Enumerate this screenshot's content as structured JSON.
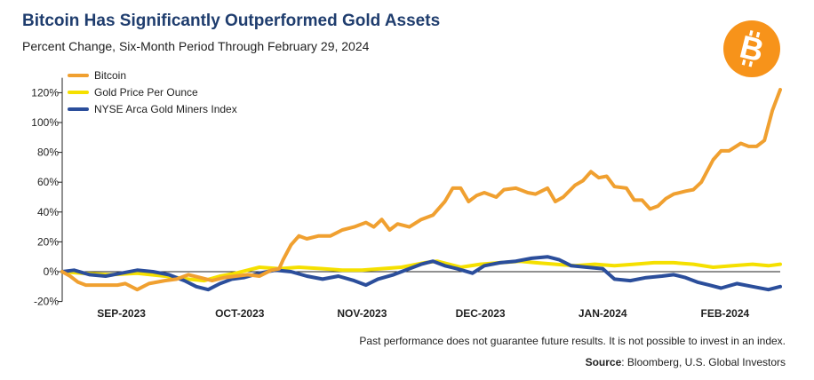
{
  "header": {
    "title": "Bitcoin Has Significantly Outperformed Gold Assets",
    "subtitle": "Percent Change, Six-Month Period Through February 29, 2024"
  },
  "logo": {
    "icon": "bitcoin-logo-icon",
    "glyph": "B",
    "color": "#f7931a"
  },
  "footer": {
    "disclaimer": "Past performance does not guarantee future results. It is not possible to invest in an index.",
    "source_label": "Source",
    "source_text": ": Bloomberg, U.S. Global Investors"
  },
  "chart_data": {
    "type": "line",
    "title": "Bitcoin Has Significantly Outperformed Gold Assets",
    "subtitle": "Percent Change, Six-Month Period Through February 29, 2024",
    "xlabel": "",
    "ylabel": "",
    "ylim": [
      -20,
      130
    ],
    "xlim": [
      "2023-08-31",
      "2024-02-29"
    ],
    "yticks": [
      -20,
      0,
      20,
      40,
      60,
      80,
      100,
      120
    ],
    "ytick_labels": [
      "-20%",
      "0%",
      "20%",
      "40%",
      "60%",
      "80%",
      "100%",
      "120%"
    ],
    "xticks": [
      {
        "date": "2023-09-15",
        "label": "SEP-2023"
      },
      {
        "date": "2023-10-15",
        "label": "OCT-2023"
      },
      {
        "date": "2023-11-15",
        "label": "NOV-2023"
      },
      {
        "date": "2023-12-15",
        "label": "DEC-2023"
      },
      {
        "date": "2024-01-15",
        "label": "JAN-2024"
      },
      {
        "date": "2024-02-15",
        "label": "FEB-2024"
      }
    ],
    "grid": false,
    "zero_line": true,
    "legend_position": "top-left",
    "series": [
      {
        "name": "Bitcoin",
        "color": "#f0a030",
        "points": [
          [
            "2023-08-31",
            0
          ],
          [
            "2023-09-02",
            -3
          ],
          [
            "2023-09-04",
            -7
          ],
          [
            "2023-09-06",
            -9
          ],
          [
            "2023-09-10",
            -9
          ],
          [
            "2023-09-14",
            -9
          ],
          [
            "2023-09-16",
            -8
          ],
          [
            "2023-09-19",
            -12
          ],
          [
            "2023-09-22",
            -8
          ],
          [
            "2023-09-26",
            -6
          ],
          [
            "2023-09-29",
            -5
          ],
          [
            "2023-10-02",
            -2
          ],
          [
            "2023-10-05",
            -4
          ],
          [
            "2023-10-08",
            -6
          ],
          [
            "2023-10-11",
            -4
          ],
          [
            "2023-10-14",
            -3
          ],
          [
            "2023-10-17",
            -2
          ],
          [
            "2023-10-20",
            -3
          ],
          [
            "2023-10-23",
            1
          ],
          [
            "2023-10-25",
            2
          ],
          [
            "2023-10-26",
            8
          ],
          [
            "2023-10-28",
            18
          ],
          [
            "2023-10-30",
            24
          ],
          [
            "2023-11-01",
            22
          ],
          [
            "2023-11-04",
            24
          ],
          [
            "2023-11-07",
            24
          ],
          [
            "2023-11-10",
            28
          ],
          [
            "2023-11-13",
            30
          ],
          [
            "2023-11-16",
            33
          ],
          [
            "2023-11-18",
            30
          ],
          [
            "2023-11-20",
            35
          ],
          [
            "2023-11-22",
            28
          ],
          [
            "2023-11-24",
            32
          ],
          [
            "2023-11-27",
            30
          ],
          [
            "2023-11-30",
            35
          ],
          [
            "2023-12-03",
            38
          ],
          [
            "2023-12-06",
            47
          ],
          [
            "2023-12-08",
            56
          ],
          [
            "2023-12-10",
            56
          ],
          [
            "2023-12-12",
            47
          ],
          [
            "2023-12-14",
            51
          ],
          [
            "2023-12-16",
            53
          ],
          [
            "2023-12-19",
            50
          ],
          [
            "2023-12-21",
            55
          ],
          [
            "2023-12-24",
            56
          ],
          [
            "2023-12-27",
            53
          ],
          [
            "2023-12-29",
            52
          ],
          [
            "2024-01-01",
            56
          ],
          [
            "2024-01-03",
            47
          ],
          [
            "2024-01-05",
            50
          ],
          [
            "2024-01-08",
            58
          ],
          [
            "2024-01-10",
            61
          ],
          [
            "2024-01-12",
            67
          ],
          [
            "2024-01-14",
            63
          ],
          [
            "2024-01-16",
            64
          ],
          [
            "2024-01-18",
            57
          ],
          [
            "2024-01-21",
            56
          ],
          [
            "2024-01-23",
            48
          ],
          [
            "2024-01-25",
            48
          ],
          [
            "2024-01-27",
            42
          ],
          [
            "2024-01-29",
            44
          ],
          [
            "2024-01-31",
            49
          ],
          [
            "2024-02-02",
            52
          ],
          [
            "2024-02-05",
            54
          ],
          [
            "2024-02-07",
            55
          ],
          [
            "2024-02-09",
            60
          ],
          [
            "2024-02-12",
            75
          ],
          [
            "2024-02-14",
            81
          ],
          [
            "2024-02-16",
            81
          ],
          [
            "2024-02-19",
            86
          ],
          [
            "2024-02-21",
            84
          ],
          [
            "2024-02-23",
            84
          ],
          [
            "2024-02-25",
            88
          ],
          [
            "2024-02-27",
            108
          ],
          [
            "2024-02-29",
            122
          ]
        ]
      },
      {
        "name": "Gold Price Per Ounce",
        "color": "#f5e000",
        "points": [
          [
            "2023-08-31",
            0
          ],
          [
            "2023-09-05",
            -1
          ],
          [
            "2023-09-12",
            -2
          ],
          [
            "2023-09-19",
            -1
          ],
          [
            "2023-09-26",
            -3
          ],
          [
            "2023-10-02",
            -5
          ],
          [
            "2023-10-06",
            -6
          ],
          [
            "2023-10-10",
            -3
          ],
          [
            "2023-10-14",
            -1
          ],
          [
            "2023-10-17",
            1
          ],
          [
            "2023-10-20",
            3
          ],
          [
            "2023-10-25",
            2
          ],
          [
            "2023-10-30",
            3
          ],
          [
            "2023-11-05",
            2
          ],
          [
            "2023-11-10",
            1
          ],
          [
            "2023-11-15",
            1
          ],
          [
            "2023-11-20",
            2
          ],
          [
            "2023-11-25",
            3
          ],
          [
            "2023-12-01",
            6
          ],
          [
            "2023-12-04",
            7
          ],
          [
            "2023-12-07",
            5
          ],
          [
            "2023-12-10",
            3
          ],
          [
            "2023-12-15",
            5
          ],
          [
            "2023-12-20",
            6
          ],
          [
            "2023-12-25",
            7
          ],
          [
            "2023-12-29",
            6
          ],
          [
            "2024-01-03",
            5
          ],
          [
            "2024-01-08",
            4
          ],
          [
            "2024-01-13",
            5
          ],
          [
            "2024-01-18",
            4
          ],
          [
            "2024-01-23",
            5
          ],
          [
            "2024-01-28",
            6
          ],
          [
            "2024-02-02",
            6
          ],
          [
            "2024-02-07",
            5
          ],
          [
            "2024-02-12",
            3
          ],
          [
            "2024-02-17",
            4
          ],
          [
            "2024-02-22",
            5
          ],
          [
            "2024-02-26",
            4
          ],
          [
            "2024-02-29",
            5
          ]
        ]
      },
      {
        "name": "NYSE Arca Gold Miners Index",
        "color": "#2b4e9b",
        "points": [
          [
            "2023-08-31",
            0
          ],
          [
            "2023-09-03",
            1
          ],
          [
            "2023-09-07",
            -2
          ],
          [
            "2023-09-11",
            -3
          ],
          [
            "2023-09-15",
            -1
          ],
          [
            "2023-09-19",
            1
          ],
          [
            "2023-09-23",
            0
          ],
          [
            "2023-09-27",
            -2
          ],
          [
            "2023-10-01",
            -6
          ],
          [
            "2023-10-04",
            -10
          ],
          [
            "2023-10-07",
            -12
          ],
          [
            "2023-10-10",
            -8
          ],
          [
            "2023-10-13",
            -5
          ],
          [
            "2023-10-16",
            -4
          ],
          [
            "2023-10-20",
            -1
          ],
          [
            "2023-10-24",
            1
          ],
          [
            "2023-10-28",
            0
          ],
          [
            "2023-11-01",
            -3
          ],
          [
            "2023-11-05",
            -5
          ],
          [
            "2023-11-09",
            -3
          ],
          [
            "2023-11-13",
            -6
          ],
          [
            "2023-11-16",
            -9
          ],
          [
            "2023-11-19",
            -5
          ],
          [
            "2023-11-23",
            -2
          ],
          [
            "2023-11-27",
            2
          ],
          [
            "2023-11-30",
            5
          ],
          [
            "2023-12-03",
            7
          ],
          [
            "2023-12-06",
            4
          ],
          [
            "2023-12-09",
            2
          ],
          [
            "2023-12-13",
            -1
          ],
          [
            "2023-12-16",
            4
          ],
          [
            "2023-12-20",
            6
          ],
          [
            "2023-12-24",
            7
          ],
          [
            "2023-12-28",
            9
          ],
          [
            "2024-01-01",
            10
          ],
          [
            "2024-01-04",
            8
          ],
          [
            "2024-01-07",
            4
          ],
          [
            "2024-01-11",
            3
          ],
          [
            "2024-01-15",
            2
          ],
          [
            "2024-01-18",
            -5
          ],
          [
            "2024-01-22",
            -6
          ],
          [
            "2024-01-26",
            -4
          ],
          [
            "2024-01-30",
            -3
          ],
          [
            "2024-02-02",
            -2
          ],
          [
            "2024-02-05",
            -4
          ],
          [
            "2024-02-08",
            -7
          ],
          [
            "2024-02-11",
            -9
          ],
          [
            "2024-02-14",
            -11
          ],
          [
            "2024-02-18",
            -8
          ],
          [
            "2024-02-22",
            -10
          ],
          [
            "2024-02-26",
            -12
          ],
          [
            "2024-02-29",
            -10
          ]
        ]
      }
    ]
  }
}
